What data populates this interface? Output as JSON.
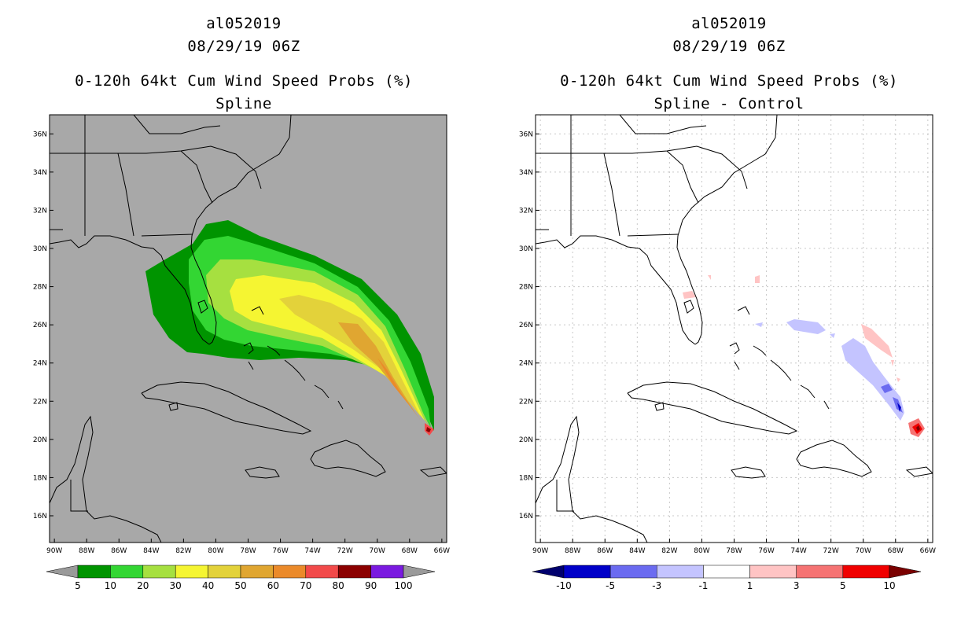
{
  "panels": [
    {
      "storm_id": "al052019",
      "datetime": "08/29/19 06Z",
      "title": "0-120h 64kt Cum Wind Speed Probs (%)",
      "subtitle": "Spline",
      "background_color": "#a8a8a8",
      "colorbar": {
        "labels": [
          "5",
          "10",
          "20",
          "30",
          "40",
          "50",
          "60",
          "70",
          "80",
          "90",
          "100"
        ],
        "colors": [
          "#009400",
          "#33d633",
          "#a6e040",
          "#f5f532",
          "#e3d23a",
          "#e0a631",
          "#eb8a2a",
          "#f24a4a",
          "#8b0000",
          "#7a1ae0"
        ],
        "end_left": "#9a9a9a",
        "end_right": "#9a9a9a"
      }
    },
    {
      "storm_id": "al052019",
      "datetime": "08/29/19 06Z",
      "title": "0-120h 64kt Cum Wind Speed Probs (%)",
      "subtitle": "Spline - Control",
      "background_color": "#ffffff",
      "colorbar": {
        "labels": [
          "-10",
          "-5",
          "-3",
          "-1",
          "1",
          "3",
          "5",
          "10"
        ],
        "colors": [
          "#0000c8",
          "#6b6bf0",
          "#c4c4ff",
          "#ffffff",
          "#ffc4c4",
          "#f57373",
          "#f00000"
        ],
        "end_left": "#00006e",
        "end_right": "#7a0000"
      }
    }
  ],
  "axes": {
    "lon_labels": [
      "90W",
      "88W",
      "86W",
      "84W",
      "82W",
      "80W",
      "78W",
      "76W",
      "74W",
      "72W",
      "70W",
      "68W",
      "66W"
    ],
    "lat_labels": [
      "16N",
      "18N",
      "20N",
      "22N",
      "24N",
      "26N",
      "28N",
      "30N",
      "32N",
      "34N",
      "36N"
    ]
  }
}
